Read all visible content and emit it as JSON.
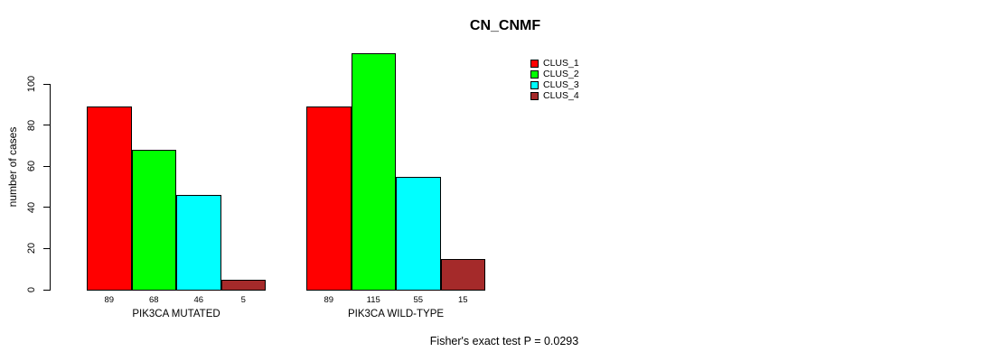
{
  "chart_data": {
    "type": "bar",
    "title": "CN_CNMF",
    "categories": [
      "PIK3CA MUTATED",
      "PIK3CA WILD-TYPE"
    ],
    "series": [
      {
        "name": "CLUS_1",
        "color": "#FF0000",
        "values": [
          89,
          89
        ]
      },
      {
        "name": "CLUS_2",
        "color": "#00FF00",
        "values": [
          68,
          115
        ]
      },
      {
        "name": "CLUS_3",
        "color": "#00FFFF",
        "values": [
          46,
          55
        ]
      },
      {
        "name": "CLUS_4",
        "color": "#A52A2A",
        "values": [
          5,
          15
        ]
      }
    ],
    "xlabel": "",
    "ylabel": "number of cases",
    "yticks": [
      0,
      20,
      40,
      60,
      80,
      100
    ],
    "ylim": [
      0,
      100
    ],
    "grid": false,
    "show_value_labels": true,
    "legend_position": "inside-top-right",
    "annotation": "Fisher's exact test P = 0.0293"
  }
}
